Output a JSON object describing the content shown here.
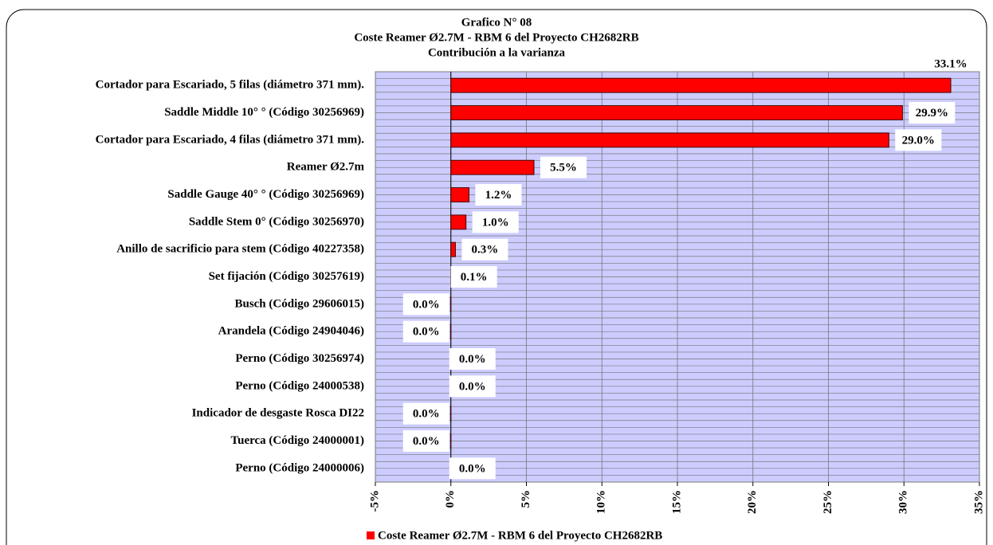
{
  "chart_data": {
    "type": "bar",
    "orientation": "horizontal",
    "title": "Grafico N° 08",
    "subtitle": "Coste Reamer Ø2.7M - RBM 6 del Proyecto CH2682RB",
    "subtitle2": "Contribución a la varianza",
    "categories": [
      "Cortador para Escariado, 5 filas (diámetro 371 mm).",
      "Saddle Middle 10° ° (Código 30256969)",
      "Cortador para Escariado, 4 filas (diámetro 371 mm).",
      "Reamer Ø2.7m",
      "Saddle Gauge 40° ° (Código 30256969)",
      "Saddle Stem 0° (Código 30256970)",
      "Anillo de sacrificio para stem (Código 40227358)",
      "Set fijación (Código 30257619)",
      "Busch (Código 29606015)",
      "Arandela (Código 24904046)",
      "Perno (Código 30256974)",
      "Perno (Código 24000538)",
      "Indicador de desgaste Rosca DI22",
      "Tuerca (Código 24000001)",
      "Perno (Código 24000006)"
    ],
    "series": [
      {
        "name": "Coste Reamer Ø2.7M - RBM 6 del Proyecto CH2682RB",
        "color": "#ff0000",
        "values": [
          33.1,
          29.9,
          29.0,
          5.5,
          1.2,
          1.0,
          0.3,
          0.1,
          -0.02,
          -0.02,
          0.0,
          0.0,
          -0.02,
          -0.02,
          0.0
        ],
        "value_labels": [
          "33.1%",
          "29.9%",
          "29.0%",
          "5.5%",
          "1.2%",
          "1.0%",
          "0.3%",
          "0.1%",
          "0.0%",
          "0.0%",
          "0.0%",
          "0.0%",
          "0.0%",
          "0.0%",
          "0.0%"
        ]
      }
    ],
    "xlim": [
      -5,
      35
    ],
    "xticks": [
      {
        "value": -5,
        "label": "-5%"
      },
      {
        "value": 0,
        "label": "0%"
      },
      {
        "value": 5,
        "label": "5%"
      },
      {
        "value": 10,
        "label": "10%"
      },
      {
        "value": 15,
        "label": "15%"
      },
      {
        "value": 20,
        "label": "20%"
      },
      {
        "value": 25,
        "label": "25%"
      },
      {
        "value": 30,
        "label": "30%"
      },
      {
        "value": 35,
        "label": "35%"
      }
    ],
    "grid": true,
    "legend": "bottom",
    "plot_background": "#ccccff"
  }
}
